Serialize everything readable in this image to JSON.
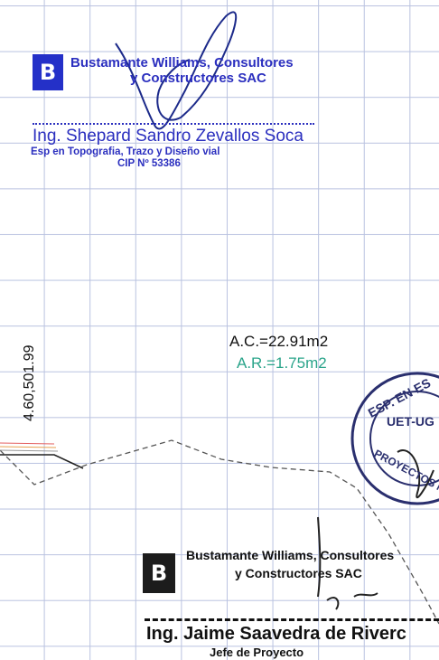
{
  "stamp_top": {
    "logo": "B",
    "company_line1": "Bustamante Williams, Consultores",
    "company_line2": "y Constructores SAC",
    "engineer": "Ing. Shepard Sandro Zevallos Soca",
    "specialty": "Esp  en Topografia, Trazo y Diseño vial",
    "cip": "CIP Nº 53386"
  },
  "drawing": {
    "elevation_label": "4.60,501.99",
    "area_cut": "A.C.=22.91m2",
    "area_fill": "A.R.=1.75m2"
  },
  "seal_right": {
    "ring_text": "ESP. EN ES",
    "middle": "UET-UG",
    "lower": "PROYECTOS N"
  },
  "stamp_bottom": {
    "logo": "B",
    "company_line1": "Bustamante Williams, Consultores",
    "company_line2": "y Constructores SAC",
    "engineer": "Ing. Jaime Saavedra de Riverc",
    "role": "Jefe de Proyecto"
  },
  "colors": {
    "grid": "#b9c2e0",
    "stamp_blue": "#2b2fbf",
    "cut_text": "#111111",
    "fill_text": "#2aa48a"
  }
}
